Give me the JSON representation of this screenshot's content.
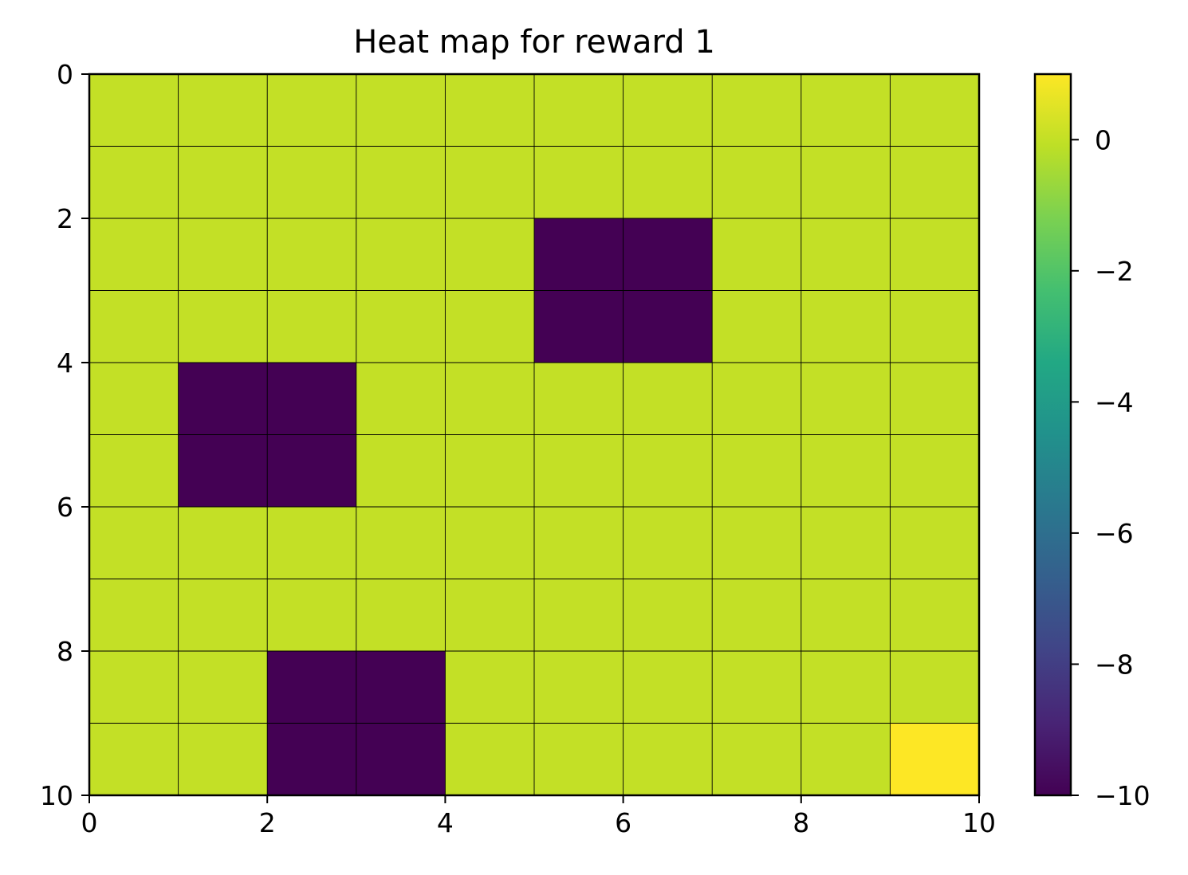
{
  "chart_data": {
    "type": "heatmap",
    "title": "Heat map for reward 1",
    "xlabel": "",
    "ylabel": "",
    "rows": 10,
    "cols": 10,
    "xlim": [
      0,
      10
    ],
    "ylim": [
      10,
      0
    ],
    "x_ticks": [
      "0",
      "2",
      "4",
      "6",
      "8",
      "10"
    ],
    "y_ticks": [
      "0",
      "2",
      "4",
      "6",
      "8",
      "10"
    ],
    "grid": true,
    "values": [
      [
        0,
        0,
        0,
        0,
        0,
        0,
        0,
        0,
        0,
        0
      ],
      [
        0,
        0,
        0,
        0,
        0,
        0,
        0,
        0,
        0,
        0
      ],
      [
        0,
        0,
        0,
        0,
        0,
        -10,
        -10,
        0,
        0,
        0
      ],
      [
        0,
        0,
        0,
        0,
        0,
        -10,
        -10,
        0,
        0,
        0
      ],
      [
        0,
        -10,
        -10,
        0,
        0,
        0,
        0,
        0,
        0,
        0
      ],
      [
        0,
        -10,
        -10,
        0,
        0,
        0,
        0,
        0,
        0,
        0
      ],
      [
        0,
        0,
        0,
        0,
        0,
        0,
        0,
        0,
        0,
        0
      ],
      [
        0,
        0,
        0,
        0,
        0,
        0,
        0,
        0,
        0,
        0
      ],
      [
        0,
        0,
        -10,
        -10,
        0,
        0,
        0,
        0,
        0,
        0
      ],
      [
        0,
        0,
        -10,
        -10,
        0,
        0,
        0,
        0,
        0,
        1
      ]
    ],
    "colorbar": {
      "colormap": "viridis",
      "range": [
        -10,
        1
      ],
      "ticks": [
        "0",
        "−2",
        "−4",
        "−6",
        "−8",
        "−10"
      ],
      "tick_values": [
        0,
        -2,
        -4,
        -6,
        -8,
        -10
      ]
    }
  }
}
